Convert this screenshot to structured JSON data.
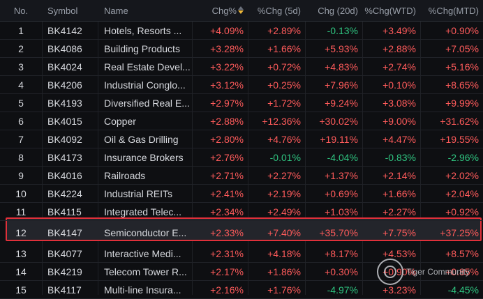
{
  "header": {
    "no": "No.",
    "symbol": "Symbol",
    "name": "Name",
    "chg": "Chg%",
    "chg5d": "%Chg (5d)",
    "chg20d": "Chg (20d)",
    "wtd": "%Chg(WTD)",
    "mtd": "%Chg(MTD)"
  },
  "rows": [
    {
      "no": "1",
      "symbol": "BK4142",
      "name": "Hotels, Resorts ...",
      "chg": "+4.09%",
      "d5": "+2.89%",
      "d20": "-0.13%",
      "wtd": "+3.49%",
      "mtd": "+0.90%"
    },
    {
      "no": "2",
      "symbol": "BK4086",
      "name": "Building Products",
      "chg": "+3.28%",
      "d5": "+1.66%",
      "d20": "+5.93%",
      "wtd": "+2.88%",
      "mtd": "+7.05%"
    },
    {
      "no": "3",
      "symbol": "BK4024",
      "name": "Real Estate Devel...",
      "chg": "+3.22%",
      "d5": "+0.72%",
      "d20": "+4.83%",
      "wtd": "+2.74%",
      "mtd": "+5.16%"
    },
    {
      "no": "4",
      "symbol": "BK4206",
      "name": "Industrial Conglo...",
      "chg": "+3.12%",
      "d5": "+0.25%",
      "d20": "+7.96%",
      "wtd": "+0.10%",
      "mtd": "+8.65%"
    },
    {
      "no": "5",
      "symbol": "BK4193",
      "name": "Diversified Real E...",
      "chg": "+2.97%",
      "d5": "+1.72%",
      "d20": "+9.24%",
      "wtd": "+3.08%",
      "mtd": "+9.99%"
    },
    {
      "no": "6",
      "symbol": "BK4015",
      "name": "Copper",
      "chg": "+2.88%",
      "d5": "+12.36%",
      "d20": "+30.02%",
      "wtd": "+9.00%",
      "mtd": "+31.62%"
    },
    {
      "no": "7",
      "symbol": "BK4092",
      "name": "Oil & Gas Drilling",
      "chg": "+2.80%",
      "d5": "+4.76%",
      "d20": "+19.11%",
      "wtd": "+4.47%",
      "mtd": "+19.55%"
    },
    {
      "no": "8",
      "symbol": "BK4173",
      "name": "Insurance Brokers",
      "chg": "+2.76%",
      "d5": "-0.01%",
      "d20": "-4.04%",
      "wtd": "-0.83%",
      "mtd": "-2.96%"
    },
    {
      "no": "9",
      "symbol": "BK4016",
      "name": "Railroads",
      "chg": "+2.71%",
      "d5": "+2.27%",
      "d20": "+1.37%",
      "wtd": "+2.14%",
      "mtd": "+2.02%"
    },
    {
      "no": "10",
      "symbol": "BK4224",
      "name": "Industrial REITs",
      "chg": "+2.41%",
      "d5": "+2.19%",
      "d20": "+0.69%",
      "wtd": "+1.66%",
      "mtd": "+2.04%"
    },
    {
      "no": "11",
      "symbol": "BK4115",
      "name": "Integrated Telec...",
      "chg": "+2.34%",
      "d5": "+2.49%",
      "d20": "+1.03%",
      "wtd": "+2.27%",
      "mtd": "+0.92%"
    },
    {
      "no": "12",
      "symbol": "BK4147",
      "name": "Semiconductor E...",
      "chg": "+2.33%",
      "d5": "+7.40%",
      "d20": "+35.70%",
      "wtd": "+7.75%",
      "mtd": "+37.25%"
    },
    {
      "no": "13",
      "symbol": "BK4077",
      "name": "Interactive Medi...",
      "chg": "+2.31%",
      "d5": "+4.18%",
      "d20": "+8.17%",
      "wtd": "+4.53%",
      "mtd": "+8.57%"
    },
    {
      "no": "14",
      "symbol": "BK4219",
      "name": "Telecom Tower R...",
      "chg": "+2.17%",
      "d5": "+1.86%",
      "d20": "+0.30%",
      "wtd": "+0.90%",
      "mtd": "+0.85%"
    },
    {
      "no": "15",
      "symbol": "BK4117",
      "name": "Multi-line Insura...",
      "chg": "+2.16%",
      "d5": "+1.76%",
      "d20": "-4.97%",
      "wtd": "+3.23%",
      "mtd": "-4.45%"
    }
  ],
  "highlighted_row": "12",
  "watermark": {
    "text": "Tiger Community"
  },
  "colors": {
    "positive": "#ff5b5b",
    "negative": "#2fc480",
    "highlight_border": "#e0303a"
  }
}
